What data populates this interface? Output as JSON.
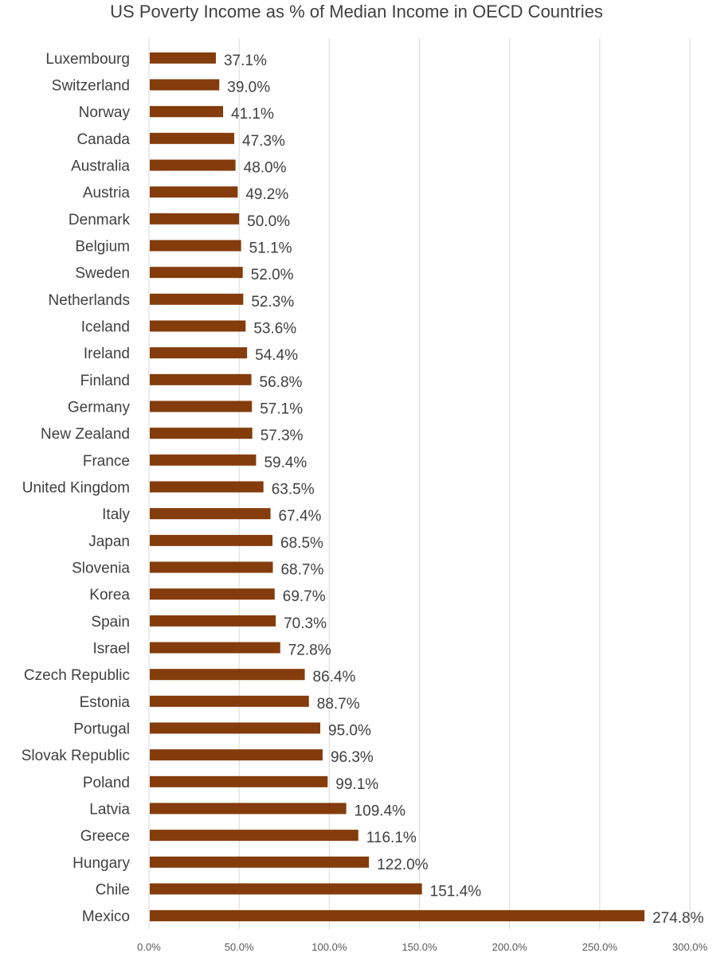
{
  "chart_data": {
    "type": "bar",
    "orientation": "horizontal",
    "title": "US Poverty Income as % of Median Income in OECD Countries",
    "xlabel": "",
    "ylabel": "",
    "xlim": [
      0,
      300
    ],
    "x_ticks": [
      "0.0%",
      "50.0%",
      "100.0%",
      "150.0%",
      "200.0%",
      "250.0%",
      "300.0%"
    ],
    "grid": "vertical",
    "legend": "none",
    "bar_color": "#843C0C",
    "categories": [
      "Luxembourg",
      "Switzerland",
      "Norway",
      "Canada",
      "Australia",
      "Austria",
      "Denmark",
      "Belgium",
      "Sweden",
      "Netherlands",
      "Iceland",
      "Ireland",
      "Finland",
      "Germany",
      "New Zealand",
      "France",
      "United Kingdom",
      "Italy",
      "Japan",
      "Slovenia",
      "Korea",
      "Spain",
      "Israel",
      "Czech Republic",
      "Estonia",
      "Portugal",
      "Slovak Republic",
      "Poland",
      "Latvia",
      "Greece",
      "Hungary",
      "Chile",
      "Mexico"
    ],
    "values": [
      37.1,
      39.0,
      41.1,
      47.3,
      48.0,
      49.2,
      50.0,
      51.1,
      52.0,
      52.3,
      53.6,
      54.4,
      56.8,
      57.1,
      57.3,
      59.4,
      63.5,
      67.4,
      68.5,
      68.7,
      69.7,
      70.3,
      72.8,
      86.4,
      88.7,
      95.0,
      96.3,
      99.1,
      109.4,
      116.1,
      122.0,
      151.4,
      274.8
    ],
    "data_labels": [
      "37.1%",
      "39.0%",
      "41.1%",
      "47.3%",
      "48.0%",
      "49.2%",
      "50.0%",
      "51.1%",
      "52.0%",
      "52.3%",
      "53.6%",
      "54.4%",
      "56.8%",
      "57.1%",
      "57.3%",
      "59.4%",
      "63.5%",
      "67.4%",
      "68.5%",
      "68.7%",
      "69.7%",
      "70.3%",
      "72.8%",
      "86.4%",
      "88.7%",
      "95.0%",
      "96.3%",
      "99.1%",
      "109.4%",
      "116.1%",
      "122.0%",
      "151.4%",
      "274.8%"
    ]
  }
}
